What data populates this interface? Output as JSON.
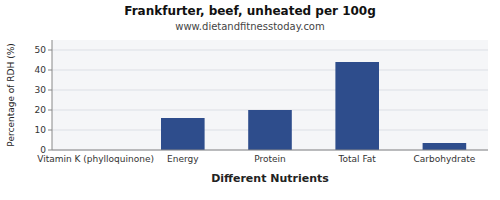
{
  "chart_data": {
    "type": "bar",
    "title": "Frankfurter, beef, unheated per 100g",
    "subtitle": "www.dietandfitnesstoday.com",
    "xlabel": "Different Nutrients",
    "ylabel": "Percentage of RDH (%)",
    "categories": [
      "Vitamin K (phylloquinone)",
      "Energy",
      "Protein",
      "Total Fat",
      "Carbohydrate"
    ],
    "values": [
      0,
      16,
      20,
      44,
      3.5
    ],
    "color": "#2e4d8c",
    "ylim": [
      0,
      55
    ],
    "yticks": [
      0,
      10,
      20,
      30,
      40,
      50
    ],
    "grid": true
  }
}
